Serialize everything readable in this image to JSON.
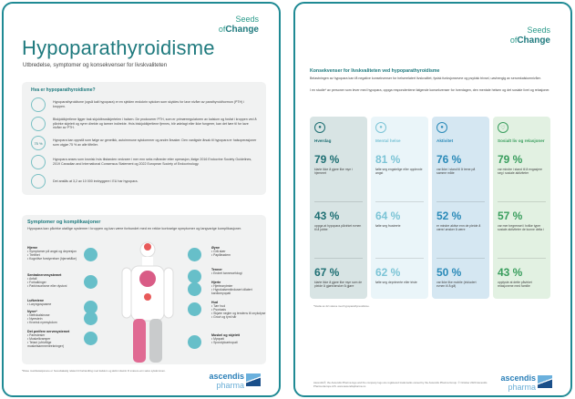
{
  "page1": {
    "title": "Hypoparathyroidisme",
    "subtitle": "Utbredelse, symptomer og konsekvenser for livskvaliteten",
    "logo": "Seeds of Change",
    "what": {
      "heading": "Hva er hypoparathyroidisme?",
      "items": [
        {
          "icon": "lightbulb-icon",
          "glyph": "",
          "text": "Hypoparathyroidisme (også kalt hypopara) er en sjelden endokrin sykdom som skyldes for lave nivåer av parathyroidhormon (PTH) i kroppen."
        },
        {
          "icon": "parathyroid-icon",
          "glyph": "",
          "text": "Biskjoldkjertlene ligger bak skjoldbruskkjertelen i halsen. De produserer PTH, som er primærregulatoren av kalsium og fosfat i kroppen ved å påvirke skjelett og nyrer direkte og tarmer indirekte. Hvis biskjoldkjertlene fjernes, blir ødelagt eller ikke fungerer, kan det føre til for lave nivåer av PTH."
        },
        {
          "icon": "percent-icon",
          "glyph": "75 %",
          "text": "Hypopara kan oppstå som følge av genetikk, autoimmune sykdommer og andre årsaker. Den vanligste årsak til hypopara er halsoperasjoner som utgjør 75 % av alle tilfeller."
        },
        {
          "icon": "calendar-icon",
          "glyph": "",
          "text": "Hypopara anses som kronisk hvis tilstanden vedvarer i mer enn seks måneder etter operasjon, ifølge 2016 Endocrine Society Guidelines, 2019 Canadian and International Consensus Statement og 2022 European Society of Endocrinology."
        },
        {
          "icon": "population-icon",
          "glyph": "",
          "text": "Det anslås at 3,2 av 10 000 innbyggere i EU har hypopara."
        }
      ]
    },
    "symptoms": {
      "heading": "Symptomer og komplikasjoner",
      "intro": "Hypopara kan påvirke utallige systemer i kroppen og kan være forbundet med en rekke kortvarige symptomer og langvarige komplikasjoner.",
      "left": [
        {
          "title": "Hjerne",
          "items": [
            "Symptomer på angst og depresjon",
            "Tretthet",
            "Kognitive forstyrrelser (hjernetåke)"
          ],
          "icon": "brain-icon"
        },
        {
          "title": "Sentralnervesystemet",
          "items": [
            "Anfall",
            "Forkalkinger",
            "Parkinsonisme eller dystoni"
          ],
          "icon": "nerve-icon"
        },
        {
          "title": "Luftveiene",
          "items": [
            "Laryngospasme"
          ],
          "icon": "lungs-icon"
        },
        {
          "title": "Nyrer*",
          "items": [
            "Nefrokalsinose",
            "Nyrestein",
            "Kronisk nyresykdom"
          ],
          "icon": "kidneys-icon"
        },
        {
          "title": "Det perifere nervesystemet",
          "items": [
            "Parestesier",
            "Muskelkramper",
            "Tetani (ufrivillige muskelsammentrekninger)"
          ],
          "icon": "peripheral-nerve-icon"
        }
      ],
      "right": [
        {
          "title": "Øyne",
          "items": [
            "Grå stær",
            "Papilleødem"
          ],
          "icon": "eye-icon"
        },
        {
          "title": "Tenner",
          "items": [
            "Endret tannmorfologi"
          ],
          "icon": "tooth-icon"
        },
        {
          "title": "Hjerte",
          "items": [
            "Hjertearytmier",
            "Hypokalsemiindusert dilatert kardiomyopati"
          ],
          "icon": "heart-icon"
        },
        {
          "title": "Hud",
          "items": [
            "Tørr hud",
            "Psoriasis",
            "Skjøre negler og tendens til onykolyse",
            "Grovt og tynt hår"
          ],
          "icon": "skin-icon"
        },
        {
          "title": "Muskel og skjelett",
          "items": [
            "Myopati",
            "Spondyloartropati"
          ],
          "icon": "bone-icon"
        }
      ]
    },
    "footnote": "*Disse manifestasjonene er hovedsakelig relatert til behandling med kalsium og aktivt vitamin D snarere enn selve sykdommen.",
    "brand": {
      "line1": "ascendis",
      "line2": "pharma"
    }
  },
  "page2": {
    "logo": "Seeds of Change",
    "heading": "Konsekvenser for livskvaliteten ved hypoparathyroidisme",
    "para1": "Belastningen av hypopara kan få negative konsekvenser for helserelatert livskvalitet, fysisk funksjonsevne og psykisk trivsel, uavhengig av serumkalsiumnivåer.",
    "para2": "I en studie* av personer som lever med hypopara, oppga respondentene følgende konsekvenser for hverdagen, den mentale helsen og det sosiale livet og relasjoner.",
    "columns": [
      {
        "title": "Hverdag",
        "icon": "person-at-desk-icon",
        "bg": "#d8e4e4",
        "color": "#1e6f73",
        "stats": [
          {
            "n": "79 %",
            "t": "klarte ikke å gjøre like mye i hjemmet"
          },
          {
            "n": "43 %",
            "t": "oppga at hypopara påvirket evnen til å jobbe"
          },
          {
            "n": "67 %",
            "t": "klarte ikke å gjøre like mye som de pleide å gjøre/ønsker å gjøre"
          }
        ]
      },
      {
        "title": "Mental helse",
        "icon": "head-icon",
        "bg": "#eaf5f9",
        "color": "#7cc4d6",
        "stats": [
          {
            "n": "81 %",
            "t": "følte seg engstelige eller opplevde angst"
          },
          {
            "n": "64 %",
            "t": "følte seg frustrerte"
          },
          {
            "n": "62 %",
            "t": "følte seg deprimerte eller triste"
          }
        ]
      },
      {
        "title": "Aktivitet",
        "icon": "body-icon",
        "bg": "#d5e7f2",
        "color": "#2a8ab8",
        "stats": [
          {
            "n": "76 %",
            "t": "var ikke i stand til å trene på samme måte"
          },
          {
            "n": "52 %",
            "t": "er mindre aktive enn de pleide å være/ ønsker å være"
          },
          {
            "n": "50 %",
            "t": "var ikke like mobile (inkludert evnen til å gå)"
          }
        ]
      },
      {
        "title": "Sosialt liv og relasjoner",
        "icon": "heart-icon",
        "bg": "#e2f1e2",
        "color": "#3a9e5e",
        "stats": [
          {
            "n": "79 %",
            "t": "var mindre i stand til å engasjere seg i sosiale aktiviteter"
          },
          {
            "n": "57 %",
            "t": "var mer begrenset i hvilke typer sosiale aktiviteter de kunne delta i"
          },
          {
            "n": "43 %",
            "t": "opplyste at dette påvirket relasjonene med familie"
          }
        ]
      }
    ],
    "footnote": "*Studie av 42 voksne med hypoparathyreoidisme.",
    "legal": "Ascendis®, the Ascendis Pharma logo and the company logo are registered trademarks owned by the Ascendis Pharma Group. © October 2023 Ascendis Pharma Europe A/S. www.ascendispharma.no",
    "brand": {
      "line1": "ascendis",
      "line2": "pharma"
    }
  }
}
